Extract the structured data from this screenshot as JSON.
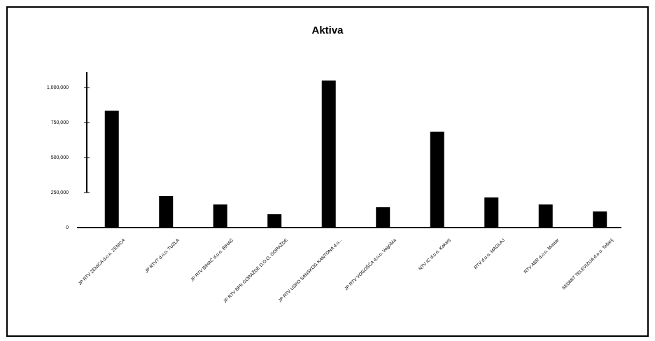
{
  "chart_data": {
    "type": "bar",
    "title": "Aktiva",
    "categories": [
      "JP RTV ZENICA d.o.o. ZENICA",
      "JP RTV7 d.o.o. TUZLA",
      "JP RTV BIHAĆ d.o.o. BIHAĆ",
      "JP RTV BPK GORAŽDE D.O.O. GORAŽDE",
      "JP RTV USKO SANSKOG KANTONA d.o...",
      "JP RTV VOGOŠĆA d.o.o. Vogošća",
      "NTV IC d.o.o. Kakanj",
      "RTV d.o.o. MAGLAJ",
      "RTV ABR d.o.o. Mostar",
      "SEDMIT TELEVIZIJA d.o.o. Tešanj"
    ],
    "values": [
      835000,
      225000,
      165000,
      95000,
      1050000,
      145000,
      685000,
      215000,
      165000,
      115000
    ],
    "color": "#000000",
    "ylim": [
      0,
      1100000
    ],
    "yticks": [
      0,
      {
        "value": 250000,
        "label": "250,000"
      },
      {
        "value": 500000,
        "label": "500,000"
      },
      {
        "value": 750000,
        "label": "750,000"
      },
      {
        "value": 1000000,
        "label": "1,000,000"
      }
    ],
    "grid": false
  }
}
